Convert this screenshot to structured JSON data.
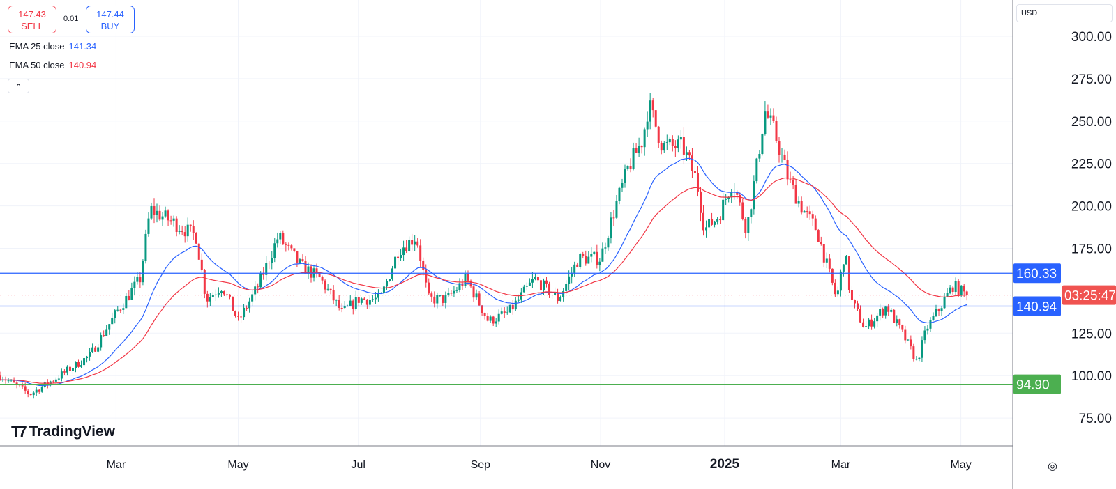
{
  "quote": {
    "sell_price": "147.43",
    "sell_label": "SELL",
    "spread": "0.01",
    "buy_price": "147.44",
    "buy_label": "BUY"
  },
  "legend": [
    {
      "label": "EMA 25 close",
      "value": "141.34",
      "color": "#2962ff"
    },
    {
      "label": "EMA 50 close",
      "value": "140.94",
      "color": "#f23645"
    }
  ],
  "currency": "USD",
  "logo": "TradingView",
  "colors": {
    "up": "#089981",
    "down": "#f23645",
    "ema25": "#2962ff",
    "ema50": "#f23645",
    "level_blue": "#2962ff",
    "level_green": "#4caf50"
  },
  "chart_data": {
    "type": "candlestick",
    "ylim": [
      60,
      310
    ],
    "yticks": [
      300,
      275,
      250,
      225,
      200,
      175,
      125,
      100,
      75
    ],
    "xticks": [
      {
        "label": "Mar",
        "day": 58
      },
      {
        "label": "May",
        "day": 119
      },
      {
        "label": "Jul",
        "day": 179
      },
      {
        "label": "Sep",
        "day": 240
      },
      {
        "label": "Nov",
        "day": 300
      },
      {
        "label": "2025",
        "day": 362
      },
      {
        "label": "Mar",
        "day": 420
      },
      {
        "label": "May",
        "day": 480
      }
    ],
    "price_path_day_close": [
      [
        0,
        100
      ],
      [
        15,
        89
      ],
      [
        30,
        100
      ],
      [
        45,
        112
      ],
      [
        58,
        137
      ],
      [
        70,
        157
      ],
      [
        75,
        198
      ],
      [
        87,
        190
      ],
      [
        98,
        182
      ],
      [
        103,
        145
      ],
      [
        111,
        153
      ],
      [
        119,
        132
      ],
      [
        129,
        153
      ],
      [
        139,
        182
      ],
      [
        150,
        165
      ],
      [
        160,
        157
      ],
      [
        171,
        137
      ],
      [
        179,
        145
      ],
      [
        190,
        145
      ],
      [
        199,
        174
      ],
      [
        208,
        182
      ],
      [
        214,
        145
      ],
      [
        223,
        145
      ],
      [
        233,
        157
      ],
      [
        244,
        132
      ],
      [
        254,
        137
      ],
      [
        267,
        157
      ],
      [
        279,
        145
      ],
      [
        289,
        169
      ],
      [
        300,
        169
      ],
      [
        307,
        198
      ],
      [
        314,
        223
      ],
      [
        321,
        239
      ],
      [
        324,
        260
      ],
      [
        331,
        235
      ],
      [
        341,
        235
      ],
      [
        348,
        215
      ],
      [
        352,
        186
      ],
      [
        359,
        194
      ],
      [
        366,
        215
      ],
      [
        373,
        186
      ],
      [
        378,
        223
      ],
      [
        382,
        256
      ],
      [
        387,
        243
      ],
      [
        394,
        215
      ],
      [
        401,
        198
      ],
      [
        408,
        186
      ],
      [
        413,
        165
      ],
      [
        418,
        145
      ],
      [
        422,
        174
      ],
      [
        425,
        145
      ],
      [
        432,
        128
      ],
      [
        443,
        141
      ],
      [
        453,
        120
      ],
      [
        458,
        108
      ],
      [
        463,
        128
      ],
      [
        470,
        141
      ],
      [
        476,
        153
      ],
      [
        483,
        147.43
      ]
    ],
    "horizontal_levels": [
      {
        "value": 160.33,
        "label": "160.33",
        "color": "#2962ff"
      },
      {
        "value": 140.94,
        "label": "140.94",
        "color": "#2962ff"
      },
      {
        "value": 94.9,
        "label": "94.90",
        "color": "#4caf50"
      }
    ],
    "last_price": 147.43,
    "countdown": "03:25:47",
    "indicators": [
      "EMA 25",
      "EMA 50"
    ]
  }
}
